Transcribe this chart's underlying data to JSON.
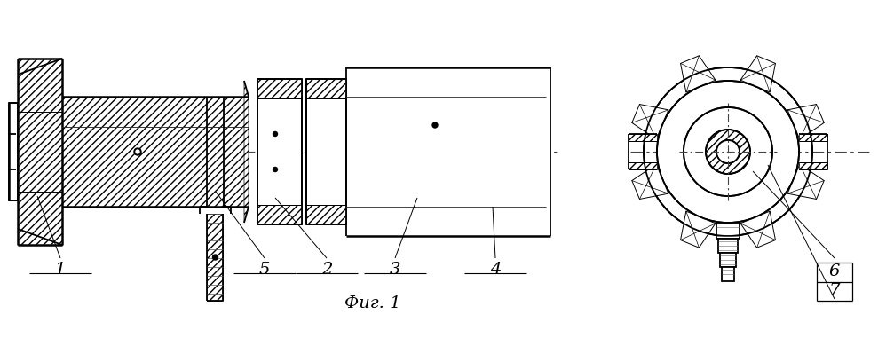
{
  "fig_label": "Фиг. 1",
  "bg_color": "#ffffff",
  "line_color": "#000000",
  "figsize": [
    9.98,
    3.81
  ],
  "dpi": 100
}
